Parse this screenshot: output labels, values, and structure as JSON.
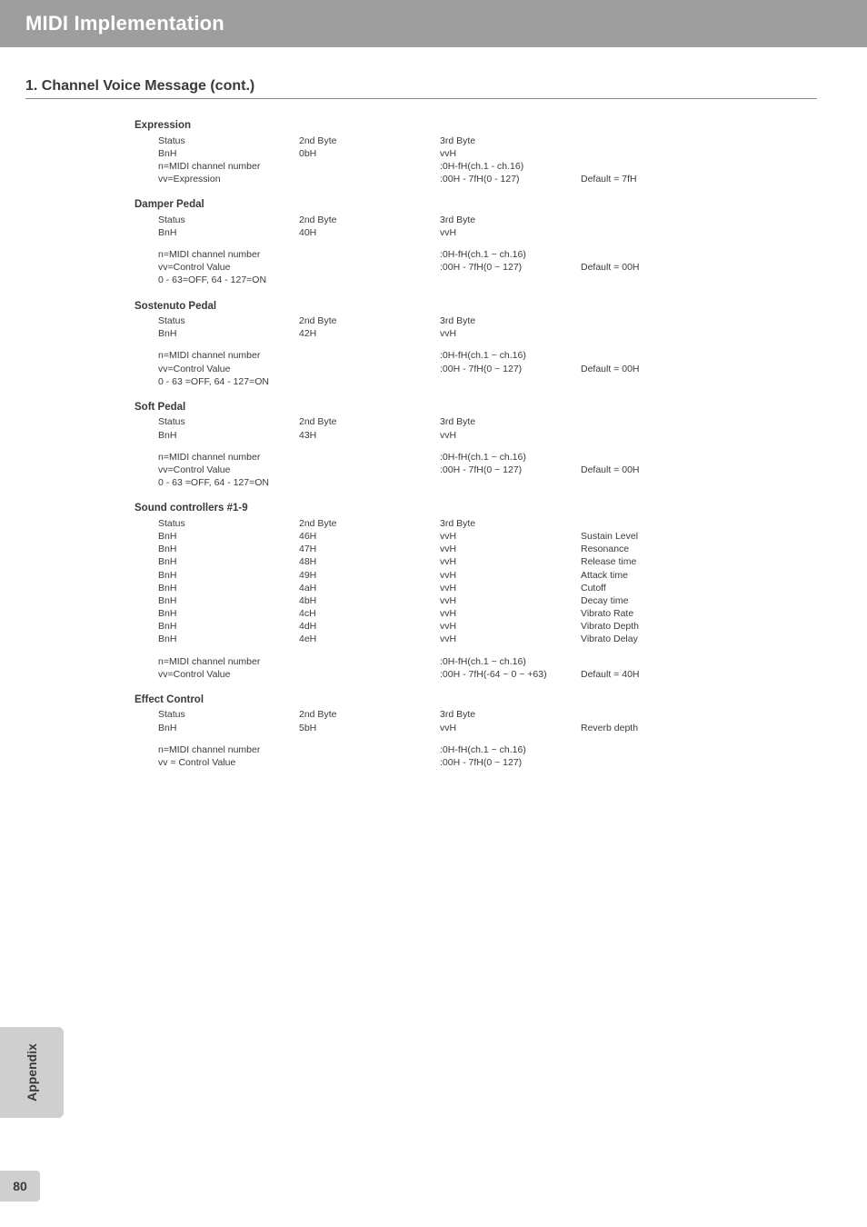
{
  "header": {
    "title": "MIDI Implementation"
  },
  "section": {
    "title": "1. Channel Voice Message (cont.)"
  },
  "sidebar": {
    "label": "Appendix"
  },
  "page": {
    "number": "80"
  },
  "labels": {
    "status": "Status",
    "byte2": "2nd Byte",
    "byte3": "3rd Byte",
    "n_midi": "n=MIDI channel number",
    "vv_ctrl": "vv=Control Value",
    "vv_ctrl_sp": "vv = Control Value",
    "vv_expr": "vv=Expression",
    "range_ch": ":0H-fH(ch.1 ~ ch.16)",
    "range_ch_dash": ":0H-fH(ch.1 - ch.16)",
    "range_127": ":00H - 7fH(0 ~ 127)",
    "range_127_dash": ":00H - 7fH(0 - 127)",
    "range_6463": ":00H - 7fH(-64 ~ 0 ~ +63)",
    "off_on": "0 - 63=OFF, 64 - 127=ON",
    "off_on_sp": "0 - 63 =OFF, 64 - 127=ON",
    "default_7f": "Default = 7fH",
    "default_00": "Default = 00H",
    "default_40": "Default = 40H",
    "bnh": "BnH",
    "vvh": "vvH"
  },
  "groups": {
    "expression": {
      "title": "Expression",
      "cc": "0bH"
    },
    "damper": {
      "title": "Damper Pedal",
      "cc": "40H"
    },
    "sostenuto": {
      "title": "Sostenuto Pedal",
      "cc": "42H"
    },
    "soft": {
      "title": "Soft Pedal",
      "cc": "43H"
    },
    "sound": {
      "title": "Sound controllers #1-9",
      "items": [
        {
          "cc": "46H",
          "name": "Sustain Level"
        },
        {
          "cc": "47H",
          "name": "Resonance"
        },
        {
          "cc": "48H",
          "name": "Release time"
        },
        {
          "cc": "49H",
          "name": "Attack time"
        },
        {
          "cc": "4aH",
          "name": "Cutoff"
        },
        {
          "cc": "4bH",
          "name": "Decay time"
        },
        {
          "cc": "4cH",
          "name": "Vibrato Rate"
        },
        {
          "cc": "4dH",
          "name": "Vibrato Depth"
        },
        {
          "cc": "4eH",
          "name": "Vibrato Delay"
        }
      ]
    },
    "effect": {
      "title": "Effect Control",
      "cc": "5bH",
      "name": "Reverb depth"
    }
  }
}
